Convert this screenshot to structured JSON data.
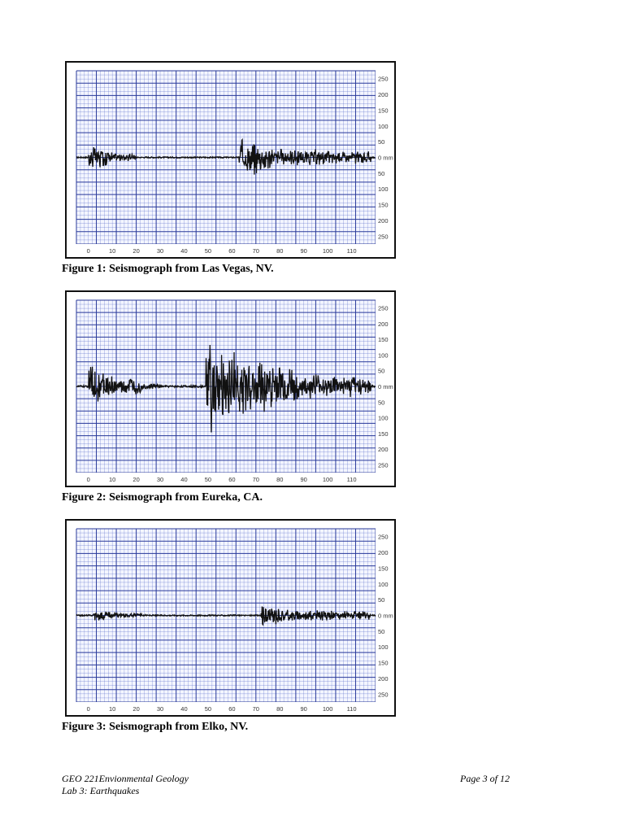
{
  "figures": [
    {
      "caption": "Figure 1: Seismograph from Las Vegas, NV.",
      "chart_data": {
        "type": "line",
        "x_ticks": [
          "0",
          "10",
          "20",
          "30",
          "40",
          "50",
          "60",
          "70",
          "80",
          "90",
          "100",
          "110"
        ],
        "y_ticks_upper": [
          "250",
          "200",
          "150",
          "100",
          "50"
        ],
        "y_zero_label": "0 mm",
        "y_ticks_lower": [
          "50",
          "100",
          "150",
          "200",
          "250"
        ],
        "xlim": [
          -5,
          120
        ],
        "ylim": [
          -280,
          280
        ],
        "trace_color": "#111111",
        "grid_color": "#4a5fc4",
        "bursts": [
          {
            "start": 0,
            "end": 10,
            "amp": 48
          },
          {
            "start": 10,
            "end": 20,
            "amp": 18
          },
          {
            "start": 63,
            "end": 66,
            "amp": 90
          },
          {
            "start": 66,
            "end": 76,
            "amp": 70
          },
          {
            "start": 76,
            "end": 118,
            "amp": 32
          }
        ],
        "noise_amp": 2
      }
    },
    {
      "caption": "Figure 2: Seismograph from Eureka, CA.",
      "chart_data": {
        "type": "line",
        "x_ticks": [
          "0",
          "10",
          "20",
          "30",
          "40",
          "50",
          "60",
          "70",
          "80",
          "90",
          "100",
          "110"
        ],
        "y_ticks_upper": [
          "250",
          "200",
          "150",
          "100",
          "50"
        ],
        "y_zero_label": "0 mm",
        "y_ticks_lower": [
          "50",
          "100",
          "150",
          "200",
          "250"
        ],
        "xlim": [
          -5,
          120
        ],
        "ylim": [
          -280,
          280
        ],
        "trace_color": "#111111",
        "grid_color": "#4a5fc4",
        "bursts": [
          {
            "start": 0,
            "end": 8,
            "amp": 80
          },
          {
            "start": 8,
            "end": 22,
            "amp": 40
          },
          {
            "start": 22,
            "end": 30,
            "amp": 14
          },
          {
            "start": 49,
            "end": 53,
            "amp": 270
          },
          {
            "start": 53,
            "end": 75,
            "amp": 150
          },
          {
            "start": 75,
            "end": 88,
            "amp": 90
          },
          {
            "start": 88,
            "end": 118,
            "amp": 45
          }
        ],
        "noise_amp": 3
      }
    },
    {
      "caption": "Figure 3: Seismograph from Elko, NV.",
      "chart_data": {
        "type": "line",
        "x_ticks": [
          "0",
          "10",
          "20",
          "30",
          "40",
          "50",
          "60",
          "70",
          "80",
          "90",
          "100",
          "110"
        ],
        "y_ticks_upper": [
          "250",
          "200",
          "150",
          "100",
          "50"
        ],
        "y_zero_label": "0 mm",
        "y_ticks_lower": [
          "50",
          "100",
          "150",
          "200",
          "250"
        ],
        "xlim": [
          -5,
          120
        ],
        "ylim": [
          -280,
          280
        ],
        "trace_color": "#111111",
        "grid_color": "#4a5fc4",
        "bursts": [
          {
            "start": 2,
            "end": 12,
            "amp": 22
          },
          {
            "start": 12,
            "end": 24,
            "amp": 8
          },
          {
            "start": 72,
            "end": 80,
            "amp": 45
          },
          {
            "start": 80,
            "end": 118,
            "amp": 22
          }
        ],
        "noise_amp": 2
      }
    }
  ],
  "footer": {
    "course": "GEO 221Envionmental Geology",
    "lab": "Lab 3: Earthquakes",
    "page": "Page 3 of 12"
  }
}
